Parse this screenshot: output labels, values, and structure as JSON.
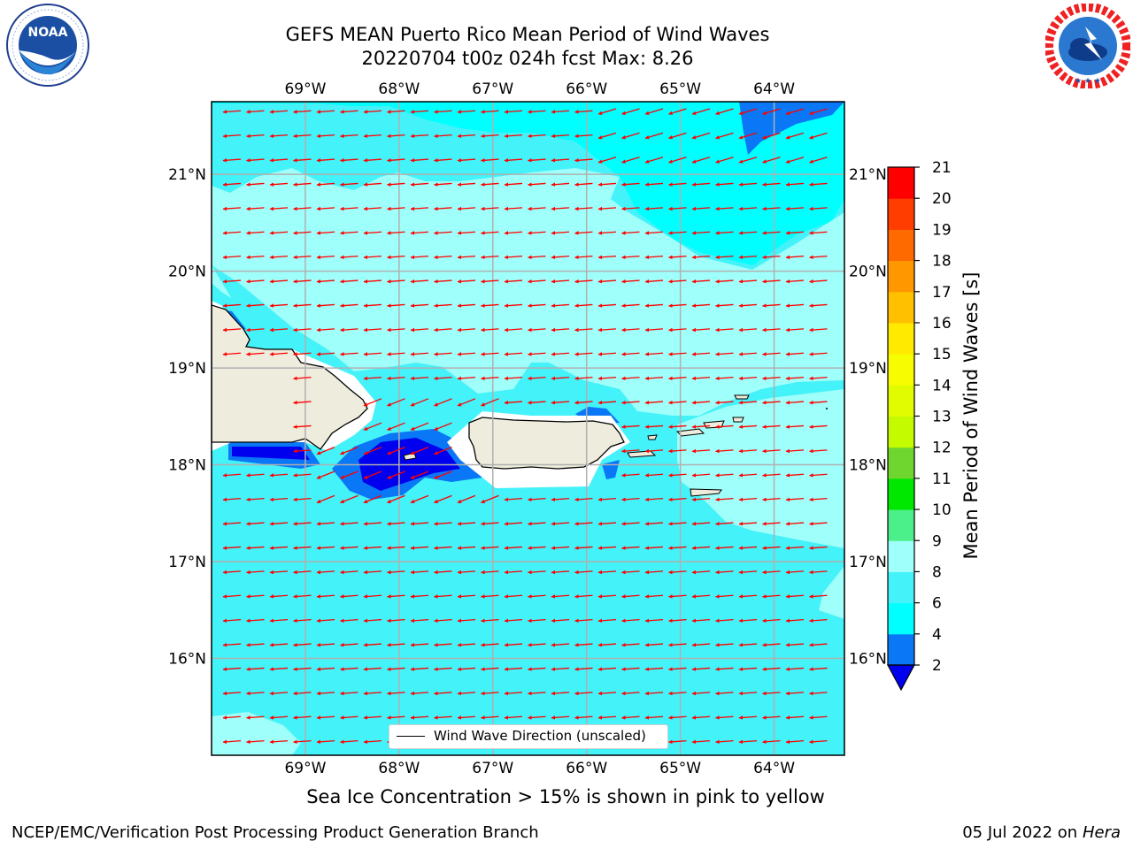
{
  "header": {
    "title_line1": "GEFS MEAN Puerto Rico Mean Period of Wind Waves",
    "title_line2": "20220704 t00z 024h fcst   Max: 8.26"
  },
  "logos": {
    "left": {
      "icon": "noaa-logo-icon",
      "text": "NOAA",
      "ring_text": "NATIONAL OCEANIC AND ATMOSPHERIC ADMINISTRATION · U.S. DEPARTMENT OF COMMERCE"
    },
    "right": {
      "icon": "nws-logo-icon",
      "ring_text": "NATIONAL WEATHER SERVICE"
    }
  },
  "map": {
    "lon_ticks": [
      "69°W",
      "68°W",
      "67°W",
      "66°W",
      "65°W",
      "64°W"
    ],
    "lat_ticks": [
      "21°N",
      "20°N",
      "19°N",
      "18°N",
      "17°N",
      "16°N"
    ],
    "lon_values": [
      -69,
      -68,
      -67,
      -66,
      -65,
      -64
    ],
    "lat_values": [
      21,
      20,
      19,
      18,
      17,
      16
    ],
    "extent": {
      "lon": [
        -70,
        -63.25
      ],
      "lat": [
        15,
        21.75
      ]
    },
    "gridlines": true,
    "legend_label": "Wind Wave Direction (unscaled)",
    "arrow_color": "#ff0000",
    "land_color": "#eeecdc",
    "dominant_direction": "westward, slightly south of west"
  },
  "colorbar": {
    "label": "Mean Period of Wind Waves [s]",
    "ticks": [
      "2",
      "4",
      "6",
      "8",
      "9",
      "10",
      "11",
      "12",
      "13",
      "14",
      "15",
      "16",
      "17",
      "18",
      "19",
      "20",
      "21"
    ],
    "bins": [
      {
        "min": 0,
        "max": 2,
        "color": "#0000ee"
      },
      {
        "min": 2,
        "max": 4,
        "color": "#0a77f6"
      },
      {
        "min": 4,
        "max": 6,
        "color": "#00ffff"
      },
      {
        "min": 6,
        "max": 8,
        "color": "#44f2f9"
      },
      {
        "min": 8,
        "max": 9,
        "color": "#9ffffa"
      },
      {
        "min": 9,
        "max": 10,
        "color": "#4cf08a"
      },
      {
        "min": 10,
        "max": 11,
        "color": "#00e700"
      },
      {
        "min": 11,
        "max": 12,
        "color": "#6fd52f"
      },
      {
        "min": 12,
        "max": 13,
        "color": "#c4fb00"
      },
      {
        "min": 13,
        "max": 14,
        "color": "#e1fc00"
      },
      {
        "min": 14,
        "max": 15,
        "color": "#f8fc00"
      },
      {
        "min": 15,
        "max": 16,
        "color": "#ffea00"
      },
      {
        "min": 16,
        "max": 17,
        "color": "#ffc000"
      },
      {
        "min": 17,
        "max": 18,
        "color": "#ff9800"
      },
      {
        "min": 18,
        "max": 19,
        "color": "#ff6a00"
      },
      {
        "min": 19,
        "max": 20,
        "color": "#ff3d00"
      },
      {
        "min": 20,
        "max": 21,
        "color": "#ff0000"
      }
    ],
    "extend_min_color": "#0000ee"
  },
  "subtitle": "Sea Ice Concentration > 15% is shown in pink to yellow",
  "footer": {
    "left": "NCEP/EMC/Verification Post Processing Product Generation Branch",
    "right_prefix": "05 Jul 2022 on ",
    "right_host": "Hera"
  }
}
